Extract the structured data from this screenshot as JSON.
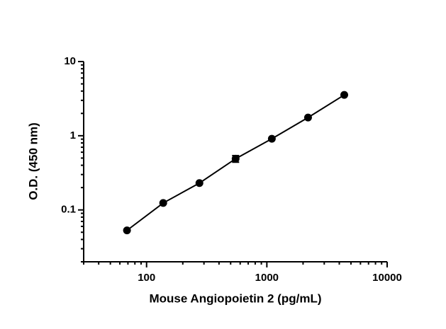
{
  "chart_data": {
    "type": "scatter",
    "x_label": "Mouse Angiopoietin 2 (pg/mL)",
    "y_label": "O.D. (450 nm)",
    "x": [
      68.75,
      137.5,
      275,
      550,
      1100,
      2200,
      4400
    ],
    "values": [
      0.053,
      0.124,
      0.23,
      0.49,
      0.91,
      1.76,
      3.55
    ],
    "errors": [
      null,
      null,
      null,
      0.05,
      null,
      null,
      null
    ],
    "color": "#000000",
    "x_log": true,
    "y_log": true,
    "xlim": [
      30,
      10000
    ],
    "xticks": [
      100,
      1000,
      10000
    ],
    "ylim": [
      0.02,
      10
    ],
    "yticks": [
      0.1,
      1,
      10
    ],
    "fit_line": true
  }
}
